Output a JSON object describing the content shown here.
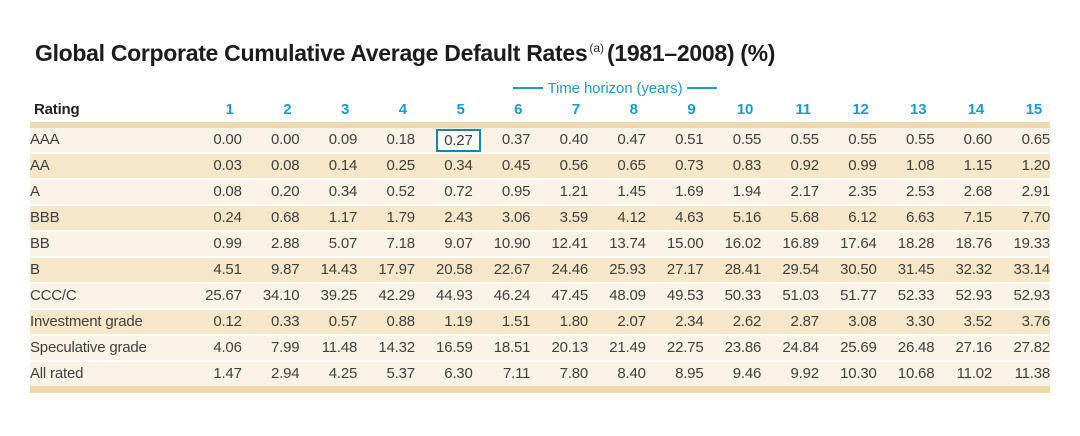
{
  "title": {
    "main": "Global Corporate Cumulative Average Default Rates",
    "footnote_marker": "(a)",
    "suffix": "(1981–2008) (%)"
  },
  "table": {
    "group_header": "Time horizon (years)",
    "rating_header": "Rating",
    "columns": [
      "1",
      "2",
      "3",
      "4",
      "5",
      "6",
      "7",
      "8",
      "9",
      "10",
      "11",
      "12",
      "13",
      "14",
      "15"
    ],
    "rows": [
      {
        "label": "AAA",
        "shade": "cream",
        "values": [
          "0.00",
          "0.00",
          "0.09",
          "0.18",
          "0.27",
          "0.37",
          "0.40",
          "0.47",
          "0.51",
          "0.55",
          "0.55",
          "0.55",
          "0.55",
          "0.60",
          "0.65"
        ]
      },
      {
        "label": "AA",
        "shade": "tan",
        "values": [
          "0.03",
          "0.08",
          "0.14",
          "0.25",
          "0.34",
          "0.45",
          "0.56",
          "0.65",
          "0.73",
          "0.83",
          "0.92",
          "0.99",
          "1.08",
          "1.15",
          "1.20"
        ]
      },
      {
        "label": "A",
        "shade": "cream",
        "values": [
          "0.08",
          "0.20",
          "0.34",
          "0.52",
          "0.72",
          "0.95",
          "1.21",
          "1.45",
          "1.69",
          "1.94",
          "2.17",
          "2.35",
          "2.53",
          "2.68",
          "2.91"
        ]
      },
      {
        "label": "BBB",
        "shade": "tan",
        "values": [
          "0.24",
          "0.68",
          "1.17",
          "1.79",
          "2.43",
          "3.06",
          "3.59",
          "4.12",
          "4.63",
          "5.16",
          "5.68",
          "6.12",
          "6.63",
          "7.15",
          "7.70"
        ]
      },
      {
        "label": "BB",
        "shade": "cream",
        "values": [
          "0.99",
          "2.88",
          "5.07",
          "7.18",
          "9.07",
          "10.90",
          "12.41",
          "13.74",
          "15.00",
          "16.02",
          "16.89",
          "17.64",
          "18.28",
          "18.76",
          "19.33"
        ]
      },
      {
        "label": "B",
        "shade": "tan",
        "values": [
          "4.51",
          "9.87",
          "14.43",
          "17.97",
          "20.58",
          "22.67",
          "24.46",
          "25.93",
          "27.17",
          "28.41",
          "29.54",
          "30.50",
          "31.45",
          "32.32",
          "33.14"
        ]
      },
      {
        "label": "CCC/C",
        "shade": "cream",
        "values": [
          "25.67",
          "34.10",
          "39.25",
          "42.29",
          "44.93",
          "46.24",
          "47.45",
          "48.09",
          "49.53",
          "50.33",
          "51.03",
          "51.77",
          "52.33",
          "52.93",
          "52.93"
        ]
      },
      {
        "label": "Investment grade",
        "shade": "tan",
        "values": [
          "0.12",
          "0.33",
          "0.57",
          "0.88",
          "1.19",
          "1.51",
          "1.80",
          "2.07",
          "2.34",
          "2.62",
          "2.87",
          "3.08",
          "3.30",
          "3.52",
          "3.76"
        ]
      },
      {
        "label": "Speculative grade",
        "shade": "cream",
        "values": [
          "4.06",
          "7.99",
          "11.48",
          "14.32",
          "16.59",
          "18.51",
          "20.13",
          "21.49",
          "22.75",
          "23.86",
          "24.84",
          "25.69",
          "26.48",
          "27.16",
          "27.82"
        ]
      },
      {
        "label": "All rated",
        "shade": "cream",
        "values": [
          "1.47",
          "2.94",
          "4.25",
          "5.37",
          "6.30",
          "7.11",
          "7.80",
          "8.40",
          "8.95",
          "9.46",
          "9.92",
          "10.30",
          "10.68",
          "11.02",
          "11.38"
        ]
      }
    ],
    "highlight": {
      "row_index": 0,
      "col_index": 4,
      "value": "0.27"
    }
  },
  "colors": {
    "accent_blue": "#1d9ad0",
    "highlight_border": "#1583b5",
    "band_tan": "#edd9ac",
    "row_tan": "#f5e7c8",
    "row_cream": "#f9f3e6",
    "text": "#404040",
    "title_text": "#1c1c1c"
  }
}
